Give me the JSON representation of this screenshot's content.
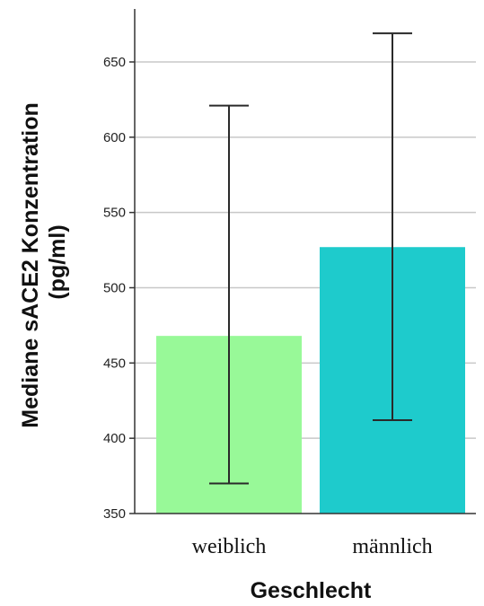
{
  "chart_data": {
    "type": "bar",
    "categories": [
      "weiblich",
      "männlich"
    ],
    "values": [
      468,
      527
    ],
    "error_low": [
      370,
      412
    ],
    "error_high": [
      621,
      669
    ],
    "ylim": [
      350,
      680
    ],
    "yticks": [
      350,
      400,
      450,
      500,
      550,
      600,
      650
    ],
    "ylabel_line1": "Mediane sACE2 Konzentration",
    "ylabel_line2": "(pg/ml)",
    "xlabel": "Geschlecht",
    "grid": true,
    "colors": [
      "#98f998",
      "#1ecbcc"
    ]
  }
}
